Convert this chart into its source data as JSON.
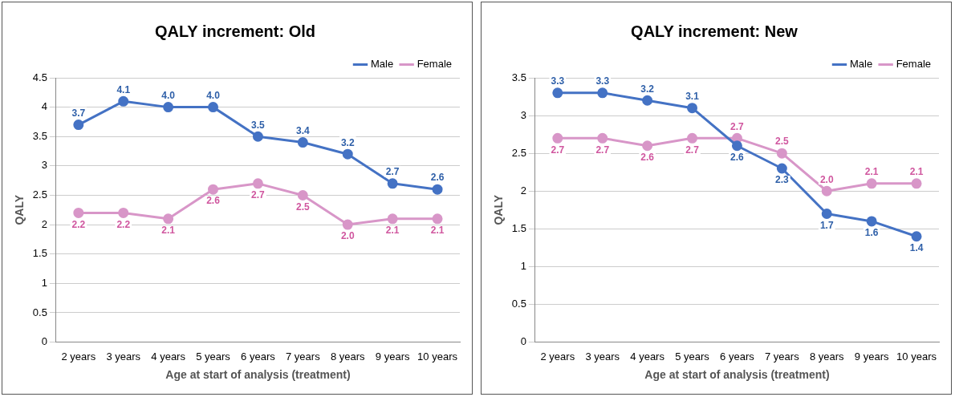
{
  "chart_data": [
    {
      "type": "line",
      "title": "QALY increment: Old",
      "xlabel": "Age at start of analysis (treatment)",
      "ylabel": "QALY",
      "categories": [
        "2 years",
        "3 years",
        "4 years",
        "5 years",
        "6 years",
        "7 years",
        "8 years",
        "9 years",
        "10 years"
      ],
      "series": [
        {
          "name": "Male",
          "color": "#4472c4",
          "values": [
            3.7,
            4.1,
            4.0,
            4.0,
            3.5,
            3.4,
            3.2,
            2.7,
            2.6
          ],
          "value_labels": [
            "3.7",
            "4.1",
            "4.0",
            "4.0",
            "3.5",
            "3.4",
            "3.2",
            "2.7",
            "2.6"
          ]
        },
        {
          "name": "Female",
          "color": "#d896c8",
          "values": [
            2.2,
            2.2,
            2.1,
            2.6,
            2.7,
            2.5,
            2.0,
            2.1,
            2.1
          ],
          "value_labels": [
            "2.2",
            "2.2",
            "2.1",
            "2.6",
            "2.7",
            "2.5",
            "2.0",
            "2.1",
            "2.1"
          ]
        }
      ],
      "ylim": [
        0,
        4.5
      ],
      "yticks": [
        0,
        0.5,
        1,
        1.5,
        2,
        2.5,
        3,
        3.5,
        4,
        4.5
      ],
      "grid": "y",
      "legend": "top right",
      "marker": "circle"
    },
    {
      "type": "line",
      "title": "QALY increment: New",
      "xlabel": "Age at start of analysis (treatment)",
      "ylabel": "QALY",
      "categories": [
        "2 years",
        "3 years",
        "4 years",
        "5 years",
        "6 years",
        "7 years",
        "8 years",
        "9 years",
        "10 years"
      ],
      "series": [
        {
          "name": "Male",
          "color": "#4472c4",
          "values": [
            3.3,
            3.3,
            3.2,
            3.1,
            2.6,
            2.3,
            1.7,
            1.6,
            1.4
          ],
          "value_labels": [
            "3.3",
            "3.3",
            "3.2",
            "3.1",
            "2.6",
            "2.3",
            "1.7",
            "1.6",
            "1.4"
          ]
        },
        {
          "name": "Female",
          "color": "#d896c8",
          "values": [
            2.7,
            2.7,
            2.6,
            2.7,
            2.7,
            2.5,
            2.0,
            2.1,
            2.1
          ],
          "value_labels": [
            "2.7",
            "2.7",
            "2.6",
            "2.7",
            "2.7",
            "2.5",
            "2.0",
            "2.1",
            "2.1"
          ]
        }
      ],
      "ylim": [
        0,
        3.5
      ],
      "yticks": [
        0,
        0.5,
        1,
        1.5,
        2,
        2.5,
        3,
        3.5
      ],
      "grid": "y",
      "legend": "top right",
      "marker": "circle"
    }
  ]
}
